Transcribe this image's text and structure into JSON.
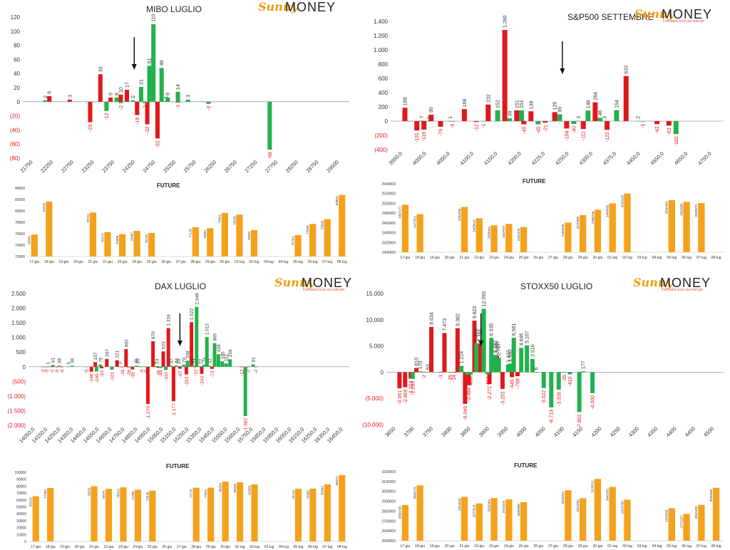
{
  "brand": {
    "logo_word1": "Sunny",
    "logo_word2": "MONEY",
    "logo_tagline": "Facciamo luce sui mercati"
  },
  "common": {
    "future_label": "FUTURE"
  },
  "colors": {
    "positive": "#23b14d",
    "negative": "#e2171c",
    "future_bar": "#f5a11c"
  },
  "chart_data": [
    {
      "id": "mibo",
      "type": "bar",
      "title": "MIBO LUGLIO",
      "ylim": [
        -80,
        120
      ],
      "yticks": [
        -80,
        -60,
        -40,
        -20,
        0,
        20,
        40,
        60,
        80,
        100,
        120
      ],
      "ytick_labels": [
        "(80)",
        "(60)",
        "(40)",
        "(20)",
        "0",
        "20",
        "40",
        "60",
        "80",
        "100",
        "120"
      ],
      "strikes": [
        "21750",
        "22250",
        "22750",
        "23250",
        "23750",
        "24250",
        "24750",
        "25250",
        "25750",
        "26250",
        "26750",
        "27250",
        "27750",
        "28250",
        "28750",
        "29500"
      ],
      "red": [
        [
          0.8,
          8
        ],
        [
          1.8,
          3
        ],
        [
          2.8,
          -29
        ],
        [
          3.3,
          39
        ],
        [
          3.8,
          6
        ],
        [
          4.3,
          10
        ],
        [
          4.6,
          17
        ],
        [
          5.1,
          -19
        ],
        [
          5.6,
          -32
        ],
        [
          6.1,
          -52
        ],
        [
          7.1,
          -1
        ]
      ],
      "green": [
        [
          0.6,
          2
        ],
        [
          3.6,
          -13
        ],
        [
          4.1,
          6
        ],
        [
          4.3,
          -2
        ],
        [
          4.9,
          2
        ],
        [
          5.3,
          21
        ],
        [
          5.5,
          -2
        ],
        [
          5.7,
          51
        ],
        [
          5.9,
          110
        ],
        [
          6.3,
          48
        ],
        [
          6.5,
          1
        ],
        [
          6.6,
          6
        ],
        [
          7.1,
          14
        ],
        [
          7.6,
          3
        ],
        [
          8.6,
          -3
        ],
        [
          11.6,
          -68
        ]
      ],
      "arrow": 4.96,
      "future": {
        "dates": [
          "17-giu",
          "18-giu",
          "19-giu",
          "20-giu",
          "21-giu",
          "22-giu",
          "23-giu",
          "24-giu",
          "25-giu",
          "26-giu",
          "27-giu",
          "28-giu",
          "29-giu",
          "30-giu",
          "01-lug",
          "02-lug",
          "03-lug",
          "04-lug",
          "05-lug",
          "06-lug",
          "07-lug",
          "08-lug"
        ],
        "values": [
          75850,
          81613,
          null,
          null,
          79714,
          76273,
          75908,
          76487,
          76110,
          null,
          null,
          77128,
          76961,
          79641,
          79330,
          76637,
          null,
          null,
          75754,
          77699,
          78556,
          82804
        ],
        "ylim": [
          72000,
          84000
        ],
        "yticks": [
          72000,
          74000,
          76000,
          78000,
          80000,
          82000,
          84000
        ]
      }
    },
    {
      "id": "sp500",
      "type": "bar",
      "title": "S&P500 SETTEMBRE",
      "ylim": [
        -400,
        1400
      ],
      "yticks": [
        -400,
        -200,
        0,
        200,
        400,
        600,
        800,
        1000,
        1200,
        1400
      ],
      "ytick_labels": [
        "(400)",
        "(200)",
        "0",
        "200",
        "400",
        "600",
        "800",
        "1.000",
        "1.200",
        "1.400"
      ],
      "strikes": [
        "3950,0",
        "4000,0",
        "4050,0",
        "4100,0",
        "4150,0",
        "4200,0",
        "4225,0",
        "4250,0",
        "4300,0",
        "4375,0",
        "4450,0",
        "4550,0",
        "4650,0",
        "4750,0"
      ],
      "red": [
        [
          0.1,
          188
        ],
        [
          0.6,
          -131
        ],
        [
          0.9,
          -119
        ],
        [
          1.2,
          90
        ],
        [
          1.6,
          -79
        ],
        [
          2.1,
          -5
        ],
        [
          2.6,
          168
        ],
        [
          3.1,
          -12
        ],
        [
          3.6,
          232
        ],
        [
          4.3,
          1280
        ],
        [
          4.8,
          151
        ],
        [
          5.1,
          -45
        ],
        [
          5.4,
          138
        ],
        [
          6.0,
          -21
        ],
        [
          6.4,
          126
        ],
        [
          6.9,
          -104
        ],
        [
          7.6,
          -111
        ],
        [
          8.1,
          264
        ],
        [
          8.6,
          -122
        ],
        [
          9.4,
          633
        ],
        [
          10.7,
          -42
        ],
        [
          11.2,
          -63
        ]
      ],
      "green": [
        [
          0.8,
          7
        ],
        [
          1.1,
          1
        ],
        [
          2.0,
          1
        ],
        [
          3.4,
          -1
        ],
        [
          4.0,
          152
        ],
        [
          4.5,
          39
        ],
        [
          5.0,
          151
        ],
        [
          5.7,
          -45
        ],
        [
          6.6,
          95
        ],
        [
          7.2,
          -40
        ],
        [
          7.4,
          3
        ],
        [
          7.8,
          148
        ],
        [
          8.3,
          46
        ],
        [
          8.5,
          3
        ],
        [
          9.0,
          154
        ],
        [
          9.9,
          2
        ],
        [
          10.1,
          -1
        ],
        [
          11.5,
          -182
        ]
      ],
      "arrow": 6.72,
      "future": {
        "dates": [
          "17-giu",
          "18-giu",
          "19-giu",
          "20-giu",
          "21-giu",
          "22-giu",
          "23-giu",
          "24-giu",
          "25-giu",
          "26-giu",
          "27-giu",
          "28-giu",
          "29-giu",
          "30-giu",
          "01-lug",
          "02-lug",
          "03-lug",
          "04-lug",
          "05-lug",
          "06-lug",
          "07-lug",
          "08-lug"
        ],
        "values": [
          2497177,
          2477811,
          null,
          null,
          2492495,
          2469443,
          2455044,
          2457937,
          2451425,
          null,
          null,
          2460565,
          2475985,
          2486746,
          2499995,
          2520183,
          null,
          null,
          2506489,
          2502985,
          2500570,
          null
        ],
        "ylim": [
          2400000,
          2540000
        ],
        "yticks": [
          2400000,
          2420000,
          2440000,
          2460000,
          2480000,
          2500000,
          2520000,
          2540000
        ]
      }
    },
    {
      "id": "dax",
      "type": "bar",
      "title": "DAX LUGLIO",
      "ylim": [
        -2000,
        2500
      ],
      "yticks": [
        -2000,
        -1500,
        -1000,
        -500,
        0,
        500,
        1000,
        1500,
        2000,
        2500
      ],
      "ytick_labels": [
        "(2.000)",
        "(1.500)",
        "(1.000)",
        "(500)",
        "0",
        "500",
        "1.000",
        "1.500",
        "2.000",
        "2.500"
      ],
      "strikes": [
        "14050,0",
        "14150,0",
        "14250,0",
        "14350,0",
        "14450,0",
        "14550,0",
        "14650,0",
        "14750,0",
        "14850,0",
        "14950,0",
        "15050,0",
        "15150,0",
        "15250,0",
        "15350,0",
        "15450,0",
        "15550,0",
        "15650,0",
        "15750,0",
        "15850,0",
        "15950,0",
        "16050,0",
        "16150,0",
        "16250,0",
        "16350,0",
        "16450,0"
      ],
      "red": [
        [
          0.9,
          -5
        ],
        [
          1.3,
          -2
        ],
        [
          1.7,
          -5
        ],
        [
          2.1,
          -5
        ],
        [
          4.4,
          -168
        ],
        [
          4.7,
          157
        ],
        [
          5.2,
          -53
        ],
        [
          5.6,
          267
        ],
        [
          6.4,
          221
        ],
        [
          6.8,
          -16
        ],
        [
          7.1,
          601
        ],
        [
          7.6,
          -92
        ],
        [
          8.0,
          25
        ],
        [
          8.8,
          -1270
        ],
        [
          9.2,
          870
        ],
        [
          9.6,
          -36
        ],
        [
          10.0,
          523
        ],
        [
          10.4,
          1319
        ],
        [
          10.8,
          -1177
        ],
        [
          11.3,
          -67
        ],
        [
          11.8,
          -263
        ],
        [
          12.2,
          1522
        ],
        [
          12.5,
          -12
        ],
        [
          13.0,
          -243
        ],
        [
          13.8,
          -73
        ],
        [
          16.1,
          -12
        ],
        [
          16.6,
          -2
        ],
        [
          17.2,
          -2
        ]
      ],
      "green": [
        [
          0.6,
          -2
        ],
        [
          1.0,
          1
        ],
        [
          1.4,
          61
        ],
        [
          1.9,
          38
        ],
        [
          2.6,
          5
        ],
        [
          2.9,
          38
        ],
        [
          4.0,
          -5
        ],
        [
          4.8,
          -160
        ],
        [
          5.1,
          75
        ],
        [
          6.0,
          -101
        ],
        [
          6.6,
          3
        ],
        [
          7.3,
          -26
        ],
        [
          7.9,
          35
        ],
        [
          8.3,
          -5
        ],
        [
          8.6,
          -6
        ],
        [
          9.3,
          3
        ],
        [
          9.5,
          23
        ],
        [
          9.8,
          -44
        ],
        [
          10.2,
          -110
        ],
        [
          10.6,
          37
        ],
        [
          11.0,
          44
        ],
        [
          11.2,
          20
        ],
        [
          11.6,
          70
        ],
        [
          11.9,
          208
        ],
        [
          12.3,
          41
        ],
        [
          12.6,
          2048
        ],
        [
          12.9,
          22
        ],
        [
          13.2,
          74
        ],
        [
          13.4,
          1012
        ],
        [
          13.6,
          32
        ],
        [
          14.0,
          805
        ],
        [
          14.3,
          428
        ],
        [
          14.6,
          185
        ],
        [
          14.9,
          112
        ],
        [
          15.2,
          256
        ],
        [
          16.4,
          -1682
        ],
        [
          17.0,
          81
        ]
      ],
      "arrow": 11.3,
      "future": {
        "dates": [
          "17-giu",
          "18-giu",
          "19-giu",
          "20-giu",
          "21-giu",
          "22-giu",
          "23-giu",
          "24-giu",
          "25-giu",
          "26-giu",
          "27-giu",
          "28-giu",
          "29-giu",
          "30-giu",
          "01-lug",
          "02-lug",
          "03-lug",
          "04-lug",
          "05-lug",
          "06-lug",
          "07-lug",
          "08-lug"
        ],
        "values": [
          65320,
          77355,
          null,
          null,
          79915,
          75975,
          78313,
          74785,
          73540,
          null,
          null,
          77770,
          77831,
          86594,
          85625,
          82560,
          null,
          null,
          76144,
          76382,
          82642,
          96074
        ],
        "ylim": [
          0,
          100000
        ],
        "yticks": [
          0,
          10000,
          20000,
          30000,
          40000,
          50000,
          60000,
          70000,
          80000,
          90000,
          100000
        ]
      }
    },
    {
      "id": "stoxx",
      "type": "bar",
      "title": "STOXX50 LUGLIO",
      "ylim": [
        -10000,
        15000
      ],
      "yticks": [
        -10000,
        -5000,
        0,
        5000,
        10000,
        15000
      ],
      "ytick_labels": [
        "(10.000)",
        "(5.000)",
        "0",
        "5.000",
        "10.000",
        "15.000"
      ],
      "strikes": [
        "3650",
        "3700",
        "3750",
        "3800",
        "3850",
        "3900",
        "3950",
        "4000",
        "4050",
        "4100",
        "4150",
        "4200",
        "4250",
        "4300",
        "4350",
        "4400",
        "4450",
        "4500"
      ],
      "red": [
        [
          0.2,
          -3061
        ],
        [
          0.5,
          -2869
        ],
        [
          0.8,
          -1223
        ],
        [
          1.1,
          810
        ],
        [
          1.5,
          -2
        ],
        [
          1.9,
          8634
        ],
        [
          2.4,
          -3
        ],
        [
          2.6,
          7473
        ],
        [
          3.1,
          -14
        ],
        [
          3.3,
          8382
        ],
        [
          3.7,
          -6049
        ],
        [
          3.9,
          -2484
        ],
        [
          4.2,
          9823
        ],
        [
          4.5,
          5456
        ],
        [
          5.0,
          -2271
        ],
        [
          5.4,
          3201
        ],
        [
          5.7,
          -3201
        ],
        [
          6.2,
          -945
        ],
        [
          6.5,
          -768
        ]
      ],
      "green": [
        [
          0.9,
          -1293
        ],
        [
          1.3,
          170
        ],
        [
          1.7,
          63
        ],
        [
          2.9,
          -35
        ],
        [
          3.5,
          1224
        ],
        [
          3.8,
          -492
        ],
        [
          4.0,
          -453
        ],
        [
          4.3,
          5498
        ],
        [
          4.7,
          12093
        ],
        [
          4.9,
          -412
        ],
        [
          5.1,
          6535
        ],
        [
          5.3,
          3282
        ],
        [
          5.5,
          2767
        ],
        [
          6.0,
          1437
        ],
        [
          6.1,
          1632
        ],
        [
          6.3,
          6561
        ],
        [
          6.7,
          4646
        ],
        [
          7.0,
          5107
        ],
        [
          7.3,
          2516
        ],
        [
          7.5,
          6
        ],
        [
          7.9,
          -3022
        ],
        [
          8.3,
          -6719
        ],
        [
          8.7,
          -3326
        ],
        [
          9.0,
          -35
        ],
        [
          9.3,
          -410
        ],
        [
          9.8,
          -7602
        ],
        [
          10.0,
          177
        ],
        [
          10.5,
          -4000
        ]
      ],
      "arrow": 4.55,
      "future": {
        "dates": [
          "17-giu",
          "18-giu",
          "19-giu",
          "20-giu",
          "21-giu",
          "22-giu",
          "23-giu",
          "24-giu",
          "25-giu",
          "26-giu",
          "27-giu",
          "28-giu",
          "29-giu",
          "30-giu",
          "01-lug",
          "02-lug",
          "03-lug",
          "04-lug",
          "05-lug",
          "06-lug",
          "07-lug",
          "08-lug"
        ],
        "values": [
          2860798,
          3060779,
          null,
          null,
          2944622,
          2877818,
          2932464,
          2919425,
          2889889,
          null,
          null,
          3011023,
          2931055,
          3126511,
          3045301,
          2915769,
          null,
          null,
          2828956,
          2771567,
          2862430,
          3036465
        ],
        "ylim": [
          2500000,
          3200000
        ],
        "yticks": [
          2500000,
          2600000,
          2700000,
          2800000,
          2900000,
          3000000,
          3100000,
          3200000
        ]
      }
    }
  ]
}
